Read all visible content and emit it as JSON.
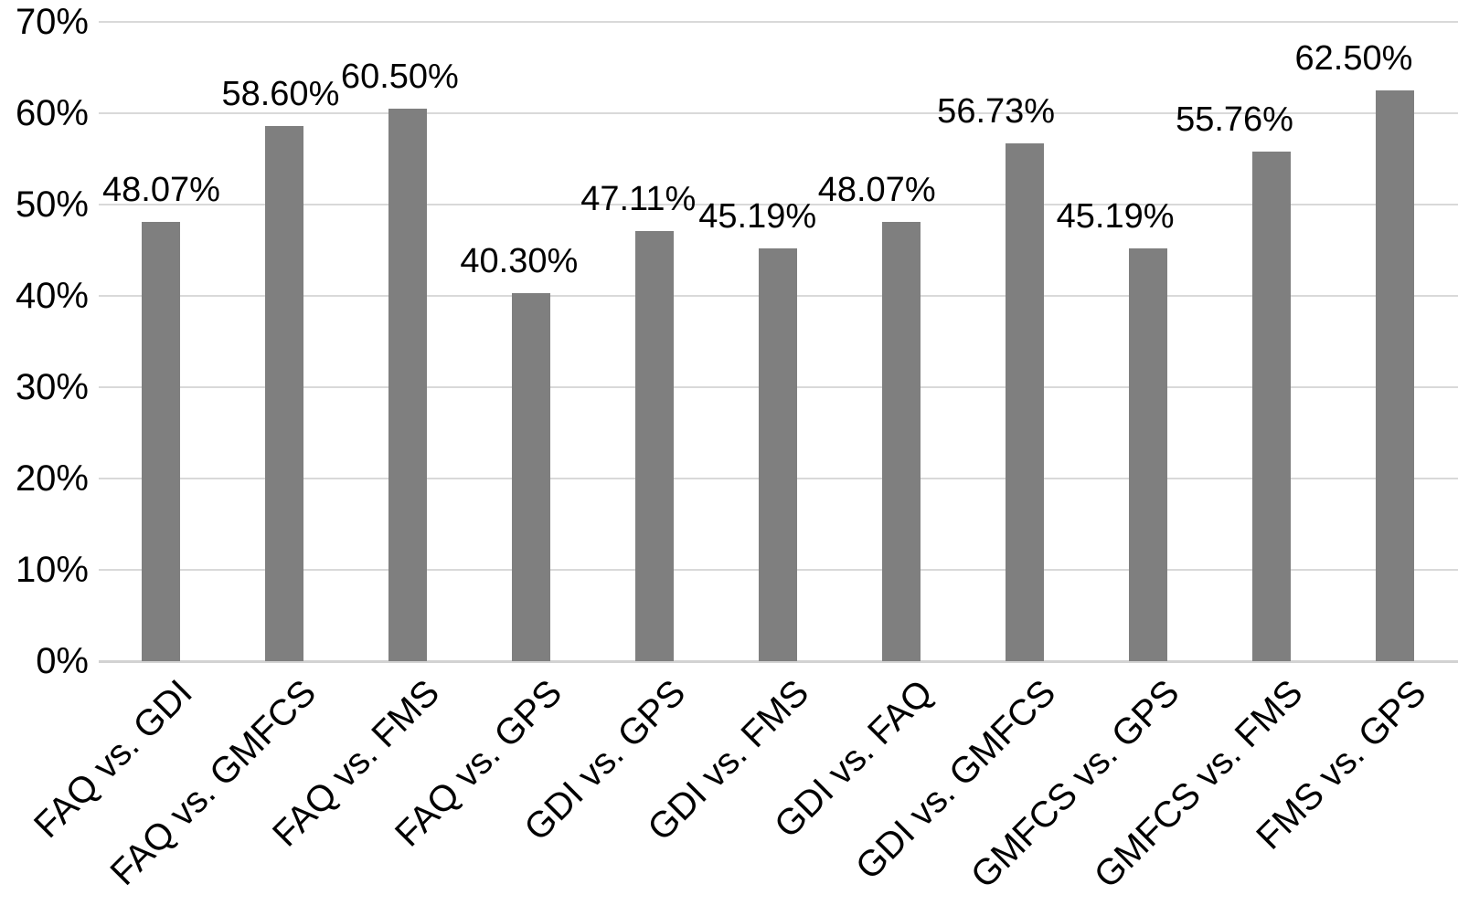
{
  "figure": {
    "background": "#ffffff"
  },
  "chart_data": {
    "type": "bar",
    "categories": [
      "FAQ vs. GDI",
      "FAQ vs. GMFCS",
      "FAQ vs. FMS",
      "FAQ vs. GPS",
      "GDI vs. GPS",
      "GDI vs. FMS",
      "GDI vs. FAQ",
      "GDI vs. GMFCS",
      "GMFCS vs. GPS",
      "GMFCS vs. FMS",
      "FMS vs. GPS"
    ],
    "values": [
      48.07,
      58.6,
      60.5,
      40.3,
      47.11,
      45.19,
      48.07,
      56.73,
      45.19,
      55.76,
      62.5
    ],
    "data_labels": [
      "48.07%",
      "58.60%",
      "60.50%",
      "40.30%",
      "47.11%",
      "45.19%",
      "48.07%",
      "56.73%",
      "45.19%",
      "55.76%",
      "62.50%"
    ],
    "y_ticks": [
      "0%",
      "10%",
      "20%",
      "30%",
      "40%",
      "50%",
      "60%",
      "70%"
    ],
    "ylim": [
      0,
      70
    ],
    "grid": true,
    "legend": false,
    "bar_color": "#7f7f7f",
    "gridline_color": "#d9d9d9",
    "axis_line_color": "#d2d2d2",
    "label_color": "#000000"
  }
}
